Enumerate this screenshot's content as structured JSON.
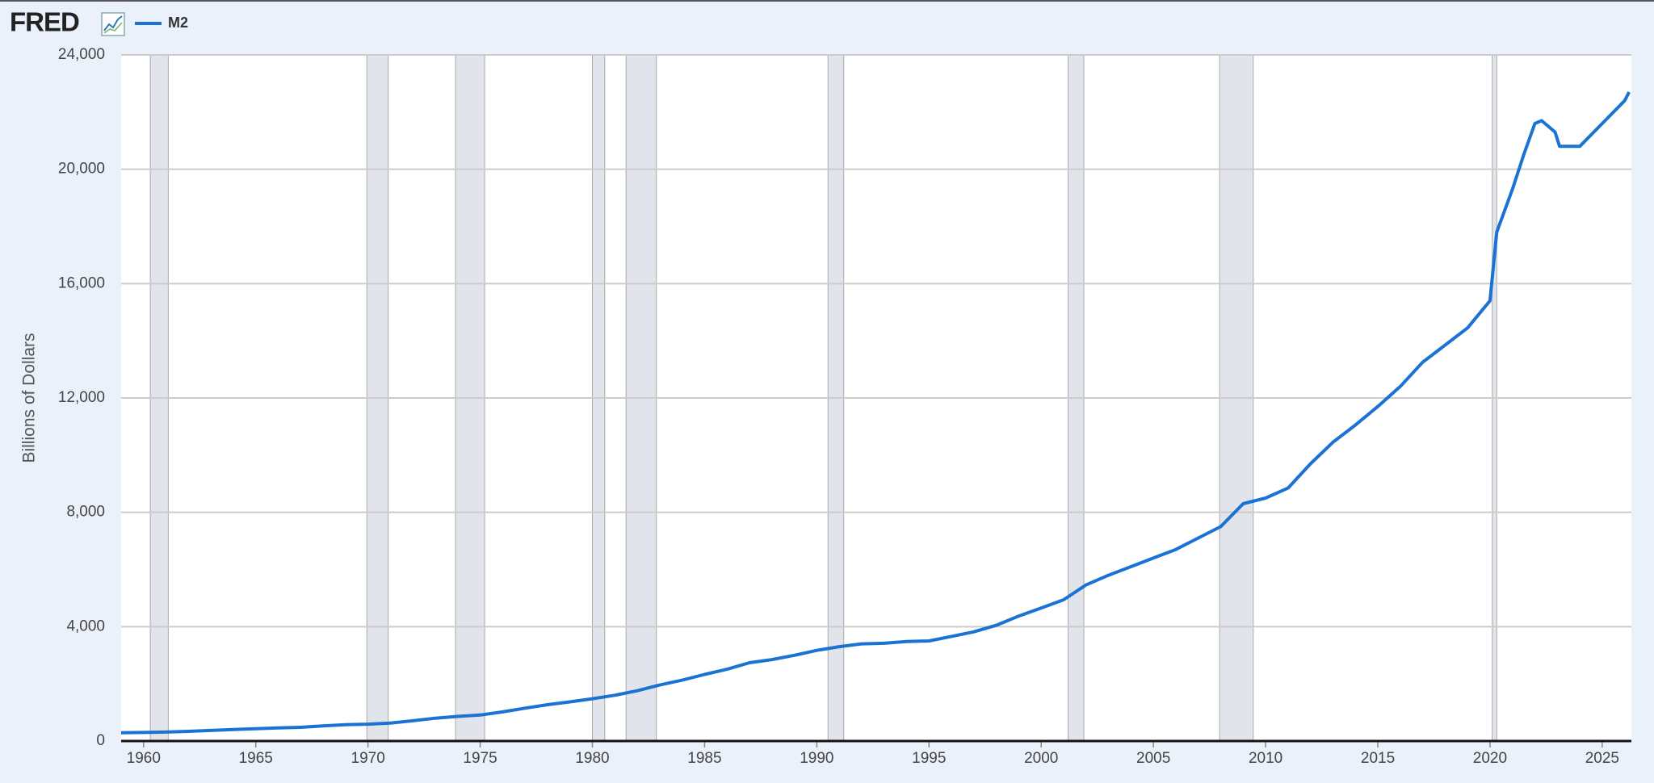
{
  "logo": "FRED",
  "chart_data": {
    "type": "line",
    "y_label": "Billions of Dollars",
    "x": [
      1959,
      1960,
      1961,
      1962,
      1963,
      1964,
      1965,
      1966,
      1967,
      1968,
      1969,
      1970,
      1971,
      1972,
      1973,
      1974,
      1975,
      1976,
      1977,
      1978,
      1979,
      1980,
      1981,
      1982,
      1983,
      1984,
      1985,
      1986,
      1987,
      1988,
      1989,
      1990,
      1991,
      1992,
      1993,
      1994,
      1995,
      1996,
      1997,
      1998,
      1999,
      2000,
      2001,
      2002,
      2003,
      2004,
      2005,
      2006,
      2007,
      2008,
      2009,
      2010,
      2011,
      2012,
      2013,
      2014,
      2015,
      2016,
      2017,
      2018,
      2019,
      2020,
      2020.3,
      2021,
      2021.5,
      2022,
      2022.3,
      2022.9,
      2023.1,
      2024,
      2025,
      2026,
      2026.2
    ],
    "series": [
      {
        "name": "M2",
        "color": "#1a73d4",
        "values": [
          287,
          300,
          313,
          340,
          370,
          400,
          432,
          460,
          480,
          530,
          570,
          590,
          630,
          710,
          800,
          860,
          910,
          1020,
          1150,
          1270,
          1370,
          1480,
          1600,
          1760,
          1960,
          2130,
          2330,
          2510,
          2740,
          2850,
          3000,
          3170,
          3300,
          3400,
          3420,
          3480,
          3500,
          3660,
          3820,
          4050,
          4370,
          4650,
          4940,
          5460,
          5800,
          6100,
          6400,
          6700,
          7100,
          7500,
          8300,
          8500,
          8850,
          9700,
          10450,
          11050,
          11700,
          12400,
          13250,
          13850,
          14450,
          15400,
          17800,
          19300,
          20500,
          21600,
          21700,
          21300,
          20800,
          20800,
          21600,
          22400,
          22700
        ]
      }
    ],
    "recessions": [
      [
        1960.3,
        1961.1
      ],
      [
        1969.95,
        1970.9
      ],
      [
        1973.9,
        1975.2
      ],
      [
        1980.0,
        1980.55
      ],
      [
        1981.5,
        1982.85
      ],
      [
        1990.5,
        1991.2
      ],
      [
        2001.2,
        2001.9
      ],
      [
        2007.95,
        2009.45
      ],
      [
        2020.1,
        2020.3
      ]
    ],
    "xlim": [
      1959,
      2026.3
    ],
    "xticks": [
      1960,
      1965,
      1970,
      1975,
      1980,
      1985,
      1990,
      1995,
      2000,
      2005,
      2010,
      2015,
      2020,
      2025
    ],
    "ylim": [
      0,
      24000
    ],
    "yticks": [
      0,
      {
        "value": 4000,
        "label": "4,000"
      },
      {
        "value": 8000,
        "label": "8,000"
      },
      {
        "value": 12000,
        "label": "12,000"
      },
      {
        "value": 16000,
        "label": "16,000"
      },
      {
        "value": 20000,
        "label": "20,000"
      },
      {
        "value": 24000,
        "label": "24,000"
      }
    ],
    "grid": true
  }
}
